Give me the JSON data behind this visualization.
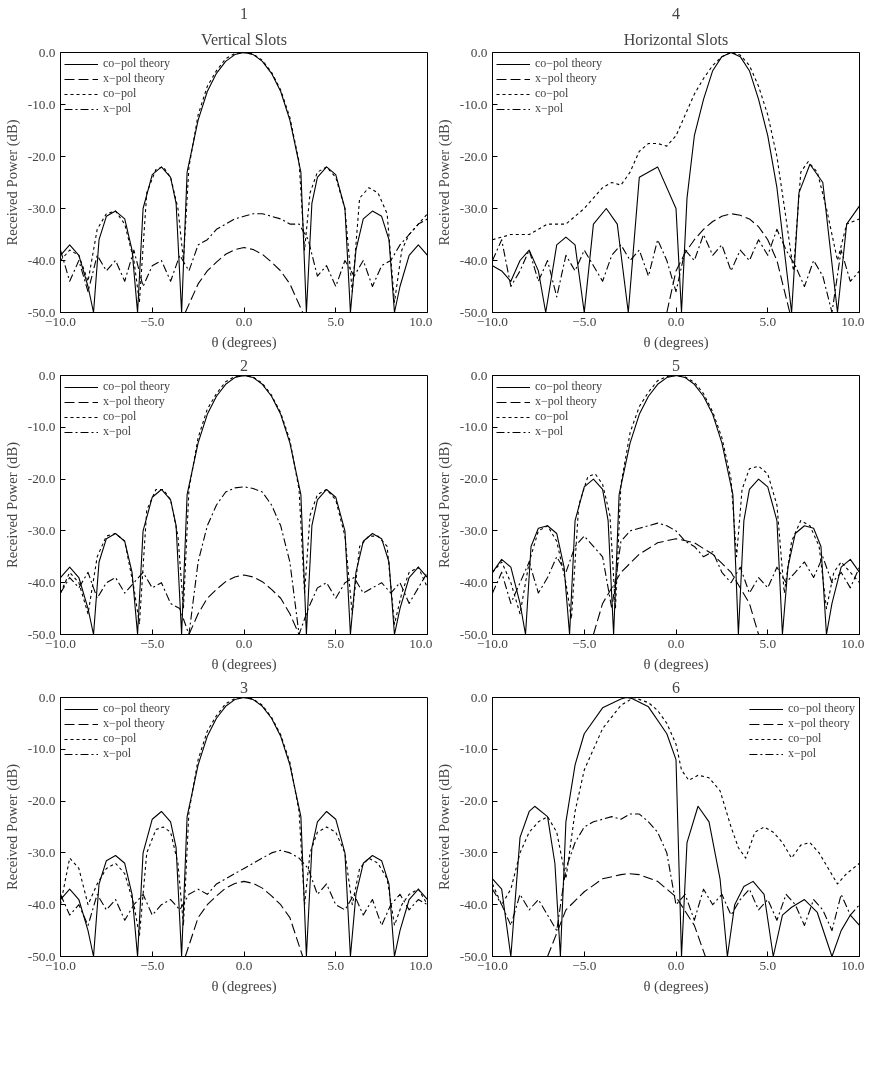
{
  "chart_data": [
    {
      "type": "line",
      "title": "Vertical Slots",
      "subtitle": "1",
      "xlabel": "θ (degrees)",
      "ylabel": "Received Power (dB)",
      "xlim": [
        -10,
        10
      ],
      "ylim": [
        -50,
        0
      ],
      "xticks": [
        {
          "value": -10,
          "label": "−10.0"
        },
        {
          "value": -5,
          "label": "−5.0"
        },
        {
          "value": 0,
          "label": "0.0"
        },
        {
          "value": 5,
          "label": "5.0"
        },
        {
          "value": 10,
          "label": "10.0"
        }
      ],
      "yticks": [
        {
          "value": -50,
          "label": "-50.0"
        },
        {
          "value": -40,
          "label": "-40.0"
        },
        {
          "value": -30,
          "label": "-30.0"
        },
        {
          "value": -20,
          "label": "-20.0"
        },
        {
          "value": -10,
          "label": "-10.0"
        },
        {
          "value": 0,
          "label": "0.0"
        }
      ],
      "legend": "top left",
      "series": [
        {
          "name": "co−pol theory",
          "color": "#000000",
          "line_style": "solid",
          "x": [
            -10,
            -9.5,
            -9,
            -8.5,
            -8.2,
            -7.9,
            -7.5,
            -7,
            -6.5,
            -6.1,
            -5.8,
            -5.5,
            -5,
            -4.5,
            -4,
            -3.7,
            -3.4,
            -3.1,
            -2.5,
            -2,
            -1.5,
            -1,
            -0.5,
            0,
            0.5,
            1,
            1.5,
            2,
            2.5,
            3.1,
            3.4,
            3.7,
            4,
            4.5,
            5,
            5.5,
            5.8,
            6.1,
            6.5,
            7,
            7.5,
            7.9,
            8.2,
            8.5,
            9,
            9.5,
            10
          ],
          "values": [
            -39,
            -37,
            -39,
            -45,
            -50,
            -36,
            -31.5,
            -30.5,
            -32,
            -38,
            -50,
            -30,
            -23.5,
            -22,
            -24,
            -29,
            -50,
            -23,
            -13,
            -7.5,
            -4,
            -1.7,
            -0.4,
            0,
            -0.4,
            -1.7,
            -4,
            -7.5,
            -13,
            -23,
            -50,
            -29,
            -24,
            -22,
            -23.5,
            -30,
            -50,
            -38,
            -32,
            -30.5,
            -31.5,
            -36,
            -50,
            -45,
            -39,
            -37,
            -39
          ]
        },
        {
          "name": "x−pol theory",
          "color": "#000000",
          "line_style": "dashed",
          "x": [
            -3.2,
            -2.5,
            -2,
            -1.5,
            -1,
            -0.5,
            0,
            0.5,
            1,
            1.5,
            2,
            2.5,
            3.2
          ],
          "values": [
            -50,
            -44.5,
            -42,
            -40.3,
            -38.8,
            -37.9,
            -37.5,
            -37.9,
            -38.8,
            -40.3,
            -42,
            -44.5,
            -50
          ]
        },
        {
          "name": "co−pol",
          "color": "#000000",
          "line_style": "dotted",
          "x": [
            -10,
            -9.5,
            -9,
            -8.5,
            -8,
            -7.5,
            -7,
            -6.5,
            -6,
            -5.7,
            -5.3,
            -4.8,
            -4.4,
            -4,
            -3.6,
            -3.3,
            -3,
            -2.5,
            -2,
            -1.5,
            -1,
            -0.5,
            0,
            0.5,
            1,
            1.5,
            2,
            2.5,
            3,
            3.3,
            3.6,
            4,
            4.5,
            5,
            5.5,
            5.9,
            6.3,
            6.8,
            7.3,
            7.8,
            8.2,
            8.6,
            9,
            9.5,
            10
          ],
          "values": [
            -40,
            -38,
            -39,
            -44,
            -34,
            -31,
            -30.5,
            -33,
            -40,
            -48,
            -27,
            -22.5,
            -22,
            -24,
            -30,
            -40,
            -22,
            -12,
            -6.5,
            -3.5,
            -1.2,
            -0.2,
            0,
            -0.3,
            -1.5,
            -3.8,
            -7.2,
            -12.5,
            -21,
            -38,
            -27,
            -23,
            -22,
            -24,
            -30,
            -46,
            -28,
            -26,
            -27,
            -31,
            -48,
            -38,
            -35,
            -33,
            -31
          ]
        },
        {
          "name": "x−pol",
          "color": "#000000",
          "line_style": "dashdot",
          "x": [
            -10,
            -9.5,
            -9,
            -8.5,
            -8,
            -7.5,
            -7,
            -6.5,
            -6,
            -5.5,
            -5,
            -4.5,
            -4,
            -3.5,
            -3,
            -2.5,
            -2,
            -1.5,
            -1,
            -0.5,
            0,
            0.5,
            1,
            1.5,
            2,
            2.5,
            3,
            3.5,
            4,
            4.5,
            5,
            5.5,
            6,
            6.5,
            7,
            7.5,
            8,
            8.5,
            9,
            9.5,
            10
          ],
          "values": [
            -38,
            -44,
            -40,
            -46,
            -39,
            -42,
            -40,
            -44,
            -38,
            -45,
            -41,
            -40,
            -44,
            -39,
            -42,
            -37,
            -36,
            -34,
            -33,
            -32,
            -31.5,
            -31,
            -31,
            -31.5,
            -32,
            -33,
            -33,
            -36,
            -43,
            -41,
            -45,
            -40,
            -43,
            -40,
            -45,
            -41,
            -40,
            -37,
            -35,
            -33,
            -32
          ]
        }
      ]
    },
    {
      "type": "line",
      "title": "Horizontal Slots",
      "subtitle": "4",
      "xlabel": "θ (degrees)",
      "ylabel": "Received Power (dB)",
      "xlim": [
        -10,
        10
      ],
      "ylim": [
        -50,
        0
      ],
      "xticks": [
        {
          "value": -10,
          "label": "−10.0"
        },
        {
          "value": -5,
          "label": "−5.0"
        },
        {
          "value": 0,
          "label": "0.0"
        },
        {
          "value": 5,
          "label": "5.0"
        },
        {
          "value": 10,
          "label": "10.0"
        }
      ],
      "yticks": [
        {
          "value": -50,
          "label": "-50.0"
        },
        {
          "value": -40,
          "label": "-40.0"
        },
        {
          "value": -30,
          "label": "-30.0"
        },
        {
          "value": -20,
          "label": "-20.0"
        },
        {
          "value": -10,
          "label": "-10.0"
        },
        {
          "value": 0,
          "label": "0.0"
        }
      ],
      "legend": "top left",
      "series": [
        {
          "name": "co−pol theory",
          "color": "#000000",
          "line_style": "solid",
          "x": [
            -10,
            -9.5,
            -9,
            -8.5,
            -8,
            -7.5,
            -7.1,
            -6.5,
            -6,
            -5.5,
            -5,
            -4.5,
            -3.8,
            -3.2,
            -2.6,
            -2,
            -1,
            0,
            0.3,
            0.6,
            1,
            1.5,
            2,
            2.5,
            3,
            3.5,
            4,
            4.5,
            5,
            5.5,
            5.9,
            6.3,
            6.7,
            7.3,
            8,
            8.8,
            9.3,
            10
          ],
          "values": [
            -41,
            -42,
            -44,
            -40,
            -38,
            -42,
            -50,
            -37,
            -35.5,
            -37,
            -50,
            -33,
            -30,
            -33,
            -50,
            -24,
            -22,
            -30,
            -50,
            -28,
            -16,
            -9,
            -3.5,
            -0.8,
            0,
            -0.8,
            -3.5,
            -9,
            -16,
            -26,
            -38,
            -50,
            -27,
            -21.5,
            -25,
            -50,
            -33,
            -29.5
          ]
        },
        {
          "name": "x−pol theory",
          "color": "#000000",
          "line_style": "dashed",
          "x": [
            -0.5,
            0,
            0.5,
            1,
            1.5,
            2,
            2.5,
            3,
            3.5,
            4,
            4.5,
            5,
            5.5,
            6.2
          ],
          "values": [
            -50,
            -42,
            -38.5,
            -36,
            -34,
            -32.5,
            -31.5,
            -31,
            -31.3,
            -32,
            -33.5,
            -36,
            -40,
            -50
          ]
        },
        {
          "name": "co−pol",
          "color": "#000000",
          "line_style": "dotted",
          "x": [
            -10,
            -9,
            -8,
            -7,
            -6,
            -5,
            -4,
            -3.5,
            -3,
            -2.5,
            -2,
            -1.5,
            -1,
            -0.5,
            0,
            0.5,
            1,
            1.5,
            2,
            2.5,
            3,
            3.5,
            4,
            4.5,
            5,
            5.5,
            6,
            6.4,
            6.8,
            7.2,
            7.7,
            8.2,
            8.8,
            9.3,
            10
          ],
          "values": [
            -36,
            -35,
            -35,
            -33,
            -33,
            -30,
            -26,
            -25,
            -25.5,
            -23,
            -19,
            -17.5,
            -17.5,
            -18,
            -16,
            -12,
            -8,
            -5,
            -2.5,
            -0.8,
            0,
            -0.5,
            -2.5,
            -6.5,
            -12,
            -20,
            -32,
            -42,
            -23,
            -21,
            -23,
            -30,
            -40,
            -33,
            -32
          ]
        },
        {
          "name": "x−pol",
          "color": "#000000",
          "line_style": "dashdot",
          "x": [
            -10,
            -9.5,
            -9,
            -8.5,
            -8,
            -7.5,
            -7,
            -6.5,
            -6,
            -5.5,
            -5,
            -4.5,
            -4,
            -3.5,
            -3,
            -2.5,
            -2,
            -1.5,
            -1,
            -0.5,
            0,
            0.5,
            1,
            1.5,
            2,
            2.5,
            3,
            3.5,
            4,
            4.5,
            5,
            5.5,
            6,
            6.5,
            7,
            7.5,
            8,
            8.5,
            9,
            9.5,
            10
          ],
          "values": [
            -40,
            -36,
            -45,
            -42,
            -38,
            -44,
            -40,
            -47,
            -39,
            -42,
            -38,
            -41,
            -44,
            -39,
            -37,
            -40,
            -38,
            -43,
            -36,
            -40,
            -46,
            -38,
            -40,
            -35,
            -39,
            -37,
            -42,
            -38,
            -40,
            -36,
            -39,
            -34,
            -38,
            -41,
            -45,
            -40,
            -43,
            -50,
            -38,
            -44,
            -42
          ]
        }
      ]
    },
    {
      "type": "line",
      "title": "2",
      "xlabel": "θ (degrees)",
      "ylabel": "Received Power (dB)",
      "xlim": [
        -10,
        10
      ],
      "ylim": [
        -50,
        0
      ],
      "xticks": [
        {
          "value": -10,
          "label": "−10.0"
        },
        {
          "value": -5,
          "label": "−5.0"
        },
        {
          "value": 0,
          "label": "0.0"
        },
        {
          "value": 5,
          "label": "5.0"
        },
        {
          "value": 10,
          "label": "10.0"
        }
      ],
      "yticks": [
        {
          "value": -50,
          "label": "-50.0"
        },
        {
          "value": -40,
          "label": "-40.0"
        },
        {
          "value": -30,
          "label": "-30.0"
        },
        {
          "value": -20,
          "label": "-20.0"
        },
        {
          "value": -10,
          "label": "-10.0"
        },
        {
          "value": 0,
          "label": "0.0"
        }
      ],
      "legend": "top left",
      "series": [
        {
          "name": "co−pol theory",
          "color": "#000000",
          "line_style": "solid",
          "x": [
            -10,
            -9.5,
            -9,
            -8.5,
            -8.2,
            -7.9,
            -7.5,
            -7,
            -6.5,
            -6.1,
            -5.8,
            -5.5,
            -5,
            -4.5,
            -4,
            -3.7,
            -3.4,
            -3.1,
            -2.5,
            -2,
            -1.5,
            -1,
            -0.5,
            0,
            0.5,
            1,
            1.5,
            2,
            2.5,
            3.1,
            3.4,
            3.7,
            4,
            4.5,
            5,
            5.5,
            5.8,
            6.1,
            6.5,
            7,
            7.5,
            7.9,
            8.2,
            8.5,
            9,
            9.5,
            10
          ],
          "values": [
            -39,
            -37,
            -39,
            -45,
            -50,
            -36,
            -31.5,
            -30.5,
            -32,
            -38,
            -50,
            -30,
            -23.5,
            -22,
            -24,
            -29,
            -50,
            -23,
            -13,
            -7.5,
            -4,
            -1.7,
            -0.4,
            0,
            -0.4,
            -1.7,
            -4,
            -7.5,
            -13,
            -23,
            -50,
            -29,
            -24,
            -22,
            -23.5,
            -30,
            -50,
            -38,
            -32,
            -30.5,
            -31.5,
            -36,
            -50,
            -45,
            -39,
            -37,
            -39
          ]
        },
        {
          "name": "x−pol theory",
          "color": "#000000",
          "line_style": "dashed",
          "x": [
            -3,
            -2.5,
            -2,
            -1.5,
            -1,
            -0.5,
            0,
            0.5,
            1,
            1.5,
            2,
            2.5,
            3
          ],
          "values": [
            -50,
            -46,
            -43,
            -41.3,
            -39.8,
            -38.9,
            -38.5,
            -38.9,
            -39.8,
            -41.3,
            -43,
            -46,
            -50
          ]
        },
        {
          "name": "co−pol",
          "color": "#000000",
          "line_style": "dotted",
          "x": [
            -10,
            -9.5,
            -9,
            -8.5,
            -8,
            -7.5,
            -7,
            -6.5,
            -6,
            -5.7,
            -5.3,
            -4.8,
            -4.4,
            -4,
            -3.6,
            -3.3,
            -3,
            -2.5,
            -2,
            -1.5,
            -1,
            -0.5,
            0,
            0.5,
            1,
            1.5,
            2,
            2.5,
            3,
            3.3,
            3.6,
            4,
            4.5,
            5,
            5.5,
            5.9,
            6.3,
            6.8,
            7.3,
            7.8,
            8.2,
            8.6,
            9,
            9.5,
            10
          ],
          "values": [
            -42,
            -38,
            -40,
            -46,
            -35,
            -31,
            -30.5,
            -32,
            -41,
            -48,
            -26,
            -22,
            -22,
            -24,
            -31,
            -45,
            -22,
            -12,
            -6.5,
            -3.5,
            -1.2,
            -0.2,
            0,
            -0.3,
            -1.5,
            -3.8,
            -7.2,
            -12.5,
            -22,
            -42,
            -27,
            -23,
            -22,
            -24,
            -31,
            -46,
            -33,
            -31,
            -31,
            -33,
            -48,
            -42,
            -38,
            -37,
            -41
          ]
        },
        {
          "name": "x−pol",
          "color": "#000000",
          "line_style": "dashdot",
          "x": [
            -10,
            -9.5,
            -9,
            -8.5,
            -8,
            -7.5,
            -7,
            -6.5,
            -6,
            -5.5,
            -5,
            -4.5,
            -4,
            -3.5,
            -3,
            -2.5,
            -2,
            -1.5,
            -1,
            -0.5,
            0,
            0.5,
            1,
            1.5,
            2,
            2.5,
            3,
            3.5,
            4,
            4.5,
            5,
            5.5,
            6,
            6.5,
            7,
            7.5,
            8,
            8.5,
            9,
            9.5,
            10
          ],
          "values": [
            -42,
            -39,
            -41,
            -38,
            -43,
            -40,
            -39,
            -42,
            -40,
            -38,
            -41,
            -40,
            -44,
            -45,
            -50,
            -36,
            -29,
            -25,
            -22.5,
            -21.7,
            -21.5,
            -21.8,
            -22.5,
            -25,
            -29,
            -36,
            -50,
            -45,
            -41,
            -40,
            -43,
            -40,
            -39,
            -42,
            -41,
            -40,
            -42,
            -40,
            -44,
            -41,
            -38
          ]
        }
      ]
    },
    {
      "type": "line",
      "title": "5",
      "xlabel": "θ (degrees)",
      "ylabel": "Received Power (dB)",
      "xlim": [
        -10,
        10
      ],
      "ylim": [
        -50,
        0
      ],
      "xticks": [
        {
          "value": -10,
          "label": "−10.0"
        },
        {
          "value": -5,
          "label": "−5.0"
        },
        {
          "value": 0,
          "label": "0.0"
        },
        {
          "value": 5,
          "label": "5.0"
        },
        {
          "value": 10,
          "label": "10.0"
        }
      ],
      "yticks": [
        {
          "value": -50,
          "label": "-50.0"
        },
        {
          "value": -40,
          "label": "-40.0"
        },
        {
          "value": -30,
          "label": "-30.0"
        },
        {
          "value": -20,
          "label": "-20.0"
        },
        {
          "value": -10,
          "label": "-10.0"
        },
        {
          "value": 0,
          "label": "0.0"
        }
      ],
      "legend": "top left",
      "series": [
        {
          "name": "co−pol theory",
          "color": "#000000",
          "line_style": "solid",
          "x": [
            -10,
            -9.5,
            -9,
            -8.5,
            -8.2,
            -7.9,
            -7.5,
            -7,
            -6.5,
            -6.1,
            -5.8,
            -5.5,
            -5,
            -4.5,
            -4,
            -3.7,
            -3.4,
            -3.1,
            -2.5,
            -2,
            -1.5,
            -1,
            -0.5,
            0,
            0.5,
            1,
            1.5,
            2,
            2.5,
            3.1,
            3.4,
            3.7,
            4,
            4.5,
            5,
            5.5,
            5.8,
            6.1,
            6.5,
            7,
            7.5,
            7.9,
            8.2,
            8.5,
            9,
            9.5,
            10
          ],
          "values": [
            -38,
            -35.5,
            -37,
            -44,
            -50,
            -33,
            -29.5,
            -29,
            -30.5,
            -37,
            -50,
            -28,
            -21.5,
            -20,
            -22,
            -28,
            -50,
            -23,
            -13,
            -7.5,
            -4,
            -1.7,
            -0.4,
            0,
            -0.4,
            -1.7,
            -4,
            -7.5,
            -13,
            -23,
            -50,
            -28,
            -22,
            -20,
            -21.5,
            -28,
            -50,
            -37,
            -30.5,
            -29,
            -29.5,
            -33,
            -50,
            -44,
            -37,
            -35.5,
            -38
          ]
        },
        {
          "name": "x−pol theory",
          "color": "#000000",
          "line_style": "dashed",
          "x": [
            -4.5,
            -4,
            -3,
            -2,
            -1,
            0,
            1,
            2,
            3,
            4,
            4.5
          ],
          "values": [
            -50,
            -44,
            -38,
            -34.5,
            -32.3,
            -31.5,
            -32.3,
            -34.5,
            -38,
            -44,
            -50
          ]
        },
        {
          "name": "co−pol",
          "color": "#000000",
          "line_style": "dotted",
          "x": [
            -10,
            -9.5,
            -9,
            -8.5,
            -8,
            -7.5,
            -7,
            -6.5,
            -6,
            -5.7,
            -5.3,
            -4.8,
            -4.4,
            -4,
            -3.6,
            -3.3,
            -3,
            -2.5,
            -2,
            -1.5,
            -1,
            -0.5,
            0,
            0.5,
            1,
            1.5,
            2,
            2.5,
            3,
            3.3,
            3.6,
            4,
            4.5,
            5,
            5.5,
            5.9,
            6.3,
            6.8,
            7.3,
            7.8,
            8.2,
            8.6,
            9,
            9.5,
            10
          ],
          "values": [
            -38,
            -36,
            -40,
            -46,
            -36,
            -30,
            -29,
            -32,
            -40,
            -47,
            -25,
            -19.5,
            -19,
            -21,
            -27,
            -45,
            -21,
            -11,
            -6,
            -3.2,
            -1,
            -0.2,
            0,
            -0.3,
            -1.3,
            -3.5,
            -7,
            -12,
            -20,
            -35,
            -22,
            -18,
            -17.5,
            -19,
            -25,
            -42,
            -32,
            -28,
            -29,
            -33,
            -45,
            -38,
            -36,
            -38,
            -40
          ]
        },
        {
          "name": "x−pol",
          "color": "#000000",
          "line_style": "dashdot",
          "x": [
            -10,
            -9.5,
            -9,
            -8.5,
            -8,
            -7.5,
            -7,
            -6.5,
            -6,
            -5.5,
            -5,
            -4.5,
            -4,
            -3.5,
            -3,
            -2.5,
            -2,
            -1.5,
            -1,
            -0.5,
            0,
            0.5,
            1,
            1.5,
            2,
            2.5,
            3,
            3.5,
            4,
            4.5,
            5,
            5.5,
            6,
            6.5,
            7,
            7.5,
            8,
            8.5,
            9,
            9.5,
            10
          ],
          "values": [
            -42,
            -38,
            -44,
            -40,
            -36,
            -42,
            -39,
            -35,
            -38,
            -33,
            -31,
            -33,
            -35,
            -45,
            -32,
            -30,
            -29.5,
            -29,
            -28.5,
            -29,
            -30,
            -32,
            -33,
            -35,
            -34,
            -38,
            -40,
            -37,
            -42,
            -39,
            -41,
            -37,
            -40,
            -38,
            -36,
            -39,
            -35,
            -40,
            -38,
            -41,
            -37
          ]
        }
      ]
    },
    {
      "type": "line",
      "title": "3",
      "xlabel": "θ (degrees)",
      "ylabel": "Received Power (dB)",
      "xlim": [
        -10,
        10
      ],
      "ylim": [
        -50,
        0
      ],
      "xticks": [
        {
          "value": -10,
          "label": "−10.0"
        },
        {
          "value": -5,
          "label": "−5.0"
        },
        {
          "value": 0,
          "label": "0.0"
        },
        {
          "value": 5,
          "label": "5.0"
        },
        {
          "value": 10,
          "label": "10.0"
        }
      ],
      "yticks": [
        {
          "value": -50,
          "label": "-50.0"
        },
        {
          "value": -40,
          "label": "-40.0"
        },
        {
          "value": -30,
          "label": "-30.0"
        },
        {
          "value": -20,
          "label": "-20.0"
        },
        {
          "value": -10,
          "label": "-10.0"
        },
        {
          "value": 0,
          "label": "0.0"
        }
      ],
      "legend": "top left",
      "series": [
        {
          "name": "co−pol theory",
          "color": "#000000",
          "line_style": "solid",
          "x": [
            -10,
            -9.5,
            -9,
            -8.5,
            -8.2,
            -7.9,
            -7.5,
            -7,
            -6.5,
            -6.1,
            -5.8,
            -5.5,
            -5,
            -4.5,
            -4,
            -3.7,
            -3.4,
            -3.1,
            -2.5,
            -2,
            -1.5,
            -1,
            -0.5,
            0,
            0.5,
            1,
            1.5,
            2,
            2.5,
            3.1,
            3.4,
            3.7,
            4,
            4.5,
            5,
            5.5,
            5.8,
            6.1,
            6.5,
            7,
            7.5,
            7.9,
            8.2,
            8.5,
            9,
            9.5,
            10
          ],
          "values": [
            -39,
            -37,
            -39,
            -45,
            -50,
            -36,
            -31.5,
            -30.5,
            -32,
            -38,
            -50,
            -30,
            -23.5,
            -22,
            -24,
            -29,
            -50,
            -23,
            -13,
            -7.5,
            -4,
            -1.7,
            -0.4,
            0,
            -0.4,
            -1.7,
            -4,
            -7.5,
            -13,
            -23,
            -50,
            -29,
            -24,
            -22,
            -23.5,
            -30,
            -50,
            -38,
            -32,
            -30.5,
            -31.5,
            -36,
            -50,
            -45,
            -39,
            -37,
            -39
          ]
        },
        {
          "name": "x−pol theory",
          "color": "#000000",
          "line_style": "dashed",
          "x": [
            -3.2,
            -2.5,
            -2,
            -1.5,
            -1,
            -0.5,
            0,
            0.5,
            1,
            1.5,
            2,
            2.5,
            3.2
          ],
          "values": [
            -50,
            -42.5,
            -40,
            -38.3,
            -36.8,
            -35.9,
            -35.5,
            -35.9,
            -36.8,
            -38.3,
            -40,
            -42.5,
            -50
          ]
        },
        {
          "name": "co−pol",
          "color": "#000000",
          "line_style": "dotted",
          "x": [
            -10,
            -9.5,
            -9,
            -8.5,
            -8,
            -7.5,
            -7,
            -6.5,
            -6,
            -5.7,
            -5.3,
            -4.8,
            -4.4,
            -4,
            -3.6,
            -3.3,
            -3,
            -2.5,
            -2,
            -1.5,
            -1,
            -0.5,
            0,
            0.5,
            1,
            1.5,
            2,
            2.5,
            3,
            3.3,
            3.6,
            4,
            4.5,
            5,
            5.5,
            5.9,
            6.3,
            6.8,
            7.3,
            7.8,
            8.2,
            8.6,
            9,
            9.5,
            10
          ],
          "values": [
            -40,
            -31,
            -33,
            -40,
            -36,
            -33,
            -32,
            -34,
            -40,
            -46,
            -30,
            -25.5,
            -25,
            -26,
            -32,
            -44,
            -22,
            -12,
            -6.5,
            -3.5,
            -1.2,
            -0.2,
            0,
            -0.3,
            -1.5,
            -3.8,
            -7.2,
            -12.5,
            -22,
            -40,
            -30,
            -26,
            -25,
            -26,
            -30,
            -40,
            -33,
            -31,
            -32,
            -35,
            -44,
            -40,
            -38,
            -37,
            -40
          ]
        },
        {
          "name": "x−pol",
          "color": "#000000",
          "line_style": "dashdot",
          "x": [
            -10,
            -9.5,
            -9,
            -8.5,
            -8,
            -7.5,
            -7,
            -6.5,
            -6,
            -5.5,
            -5,
            -4.5,
            -4,
            -3.5,
            -3,
            -2.5,
            -2,
            -1.5,
            -1,
            -0.5,
            0,
            0.5,
            1,
            1.5,
            2,
            2.5,
            3,
            3.5,
            4,
            4.5,
            5,
            5.5,
            6,
            6.5,
            7,
            7.5,
            8,
            8.5,
            9,
            9.5,
            10
          ],
          "values": [
            -38,
            -42,
            -40,
            -44,
            -38,
            -41,
            -39,
            -43,
            -40,
            -38,
            -42,
            -40,
            -39,
            -41,
            -38,
            -37,
            -38,
            -36,
            -35,
            -34,
            -33,
            -32,
            -31,
            -30,
            -29.5,
            -30,
            -31,
            -33,
            -38,
            -36,
            -40,
            -41,
            -38,
            -42,
            -39,
            -44,
            -40,
            -38,
            -41,
            -39,
            -40
          ]
        }
      ]
    },
    {
      "type": "line",
      "title": "6",
      "xlabel": "θ (degrees)",
      "ylabel": "Received Power (dB)",
      "xlim": [
        -10,
        10
      ],
      "ylim": [
        -50,
        0
      ],
      "xticks": [
        {
          "value": -10,
          "label": "−10.0"
        },
        {
          "value": -5,
          "label": "−5.0"
        },
        {
          "value": 0,
          "label": "0.0"
        },
        {
          "value": 5,
          "label": "5.0"
        },
        {
          "value": 10,
          "label": "10.0"
        }
      ],
      "yticks": [
        {
          "value": -50,
          "label": "-50.0"
        },
        {
          "value": -40,
          "label": "-40.0"
        },
        {
          "value": -30,
          "label": "-30.0"
        },
        {
          "value": -20,
          "label": "-20.0"
        },
        {
          "value": -10,
          "label": "-10.0"
        },
        {
          "value": 0,
          "label": "0.0"
        }
      ],
      "legend": "top right",
      "series": [
        {
          "name": "co−pol theory",
          "color": "#000000",
          "line_style": "solid",
          "x": [
            -10,
            -9.5,
            -9,
            -8.5,
            -8,
            -7.7,
            -7,
            -6.6,
            -6.3,
            -6,
            -5.5,
            -5,
            -4,
            -3,
            -2.7,
            -2.4,
            -1.5,
            -0.5,
            0,
            0.3,
            0.6,
            1.2,
            1.8,
            2.4,
            2.8,
            3.2,
            3.7,
            4.2,
            4.8,
            5.3,
            5.8,
            6.3,
            7,
            7.7,
            8.5,
            9,
            9.5,
            10
          ],
          "values": [
            -35,
            -37,
            -50,
            -27,
            -22,
            -21,
            -23,
            -32,
            -50,
            -24,
            -13,
            -7,
            -2,
            -0.3,
            0,
            -0.2,
            -1.8,
            -7,
            -12,
            -50,
            -28,
            -21,
            -24,
            -35,
            -50,
            -40,
            -36.5,
            -35.5,
            -38,
            -50,
            -42,
            -40.5,
            -39,
            -41.5,
            -50,
            -45,
            -42,
            -44
          ]
        },
        {
          "name": "x−pol theory",
          "color": "#000000",
          "line_style": "dashed",
          "x": [
            -7,
            -6,
            -5,
            -4,
            -3,
            -2.6,
            -2,
            -1,
            0,
            1,
            1.6
          ],
          "values": [
            -50,
            -41,
            -37.5,
            -35,
            -34.2,
            -34,
            -34.2,
            -35.5,
            -38.5,
            -44,
            -50
          ]
        },
        {
          "name": "co−pol",
          "color": "#000000",
          "line_style": "dotted",
          "x": [
            -10,
            -9.5,
            -9,
            -8.5,
            -8,
            -7.5,
            -7,
            -6.5,
            -6,
            -5.5,
            -5,
            -4,
            -3,
            -2.3,
            -1.5,
            -1,
            -0.5,
            0,
            0.3,
            0.7,
            1.2,
            1.8,
            2.4,
            3,
            3.4,
            3.8,
            4.3,
            4.8,
            5.3,
            5.8,
            6.3,
            6.8,
            7.3,
            7.8,
            8.3,
            8.8,
            9.3,
            10
          ],
          "values": [
            -36,
            -40,
            -37,
            -30,
            -26,
            -24,
            -23,
            -26,
            -35,
            -22,
            -14,
            -6,
            -1.5,
            0,
            -1,
            -2.5,
            -5,
            -9,
            -14,
            -16,
            -15,
            -15.5,
            -18,
            -25,
            -29,
            -31,
            -26,
            -25,
            -26,
            -28,
            -31,
            -28.5,
            -28,
            -30,
            -33,
            -36,
            -34,
            -32
          ]
        },
        {
          "name": "x−pol",
          "color": "#000000",
          "line_style": "dashdot",
          "x": [
            -10,
            -9.5,
            -9,
            -8.5,
            -8,
            -7.5,
            -7,
            -6.5,
            -6,
            -5.5,
            -5,
            -4.5,
            -4,
            -3.5,
            -3,
            -2.5,
            -2,
            -1.5,
            -1,
            -0.5,
            0,
            0.5,
            1,
            1.5,
            2,
            2.5,
            3,
            3.5,
            4,
            4.5,
            5,
            5.5,
            6,
            6.5,
            7,
            7.5,
            8,
            8.5,
            9,
            9.5,
            10
          ],
          "values": [
            -37,
            -40,
            -44,
            -38,
            -41,
            -39,
            -42,
            -45,
            -33,
            -28,
            -25,
            -24,
            -23.5,
            -23,
            -23.5,
            -22.5,
            -22.5,
            -24,
            -26,
            -30,
            -40,
            -38,
            -43,
            -37,
            -40,
            -38,
            -42,
            -39,
            -37,
            -41,
            -39,
            -43,
            -38,
            -40,
            -44,
            -39,
            -41,
            -45,
            -38,
            -42,
            -40
          ]
        }
      ]
    }
  ]
}
